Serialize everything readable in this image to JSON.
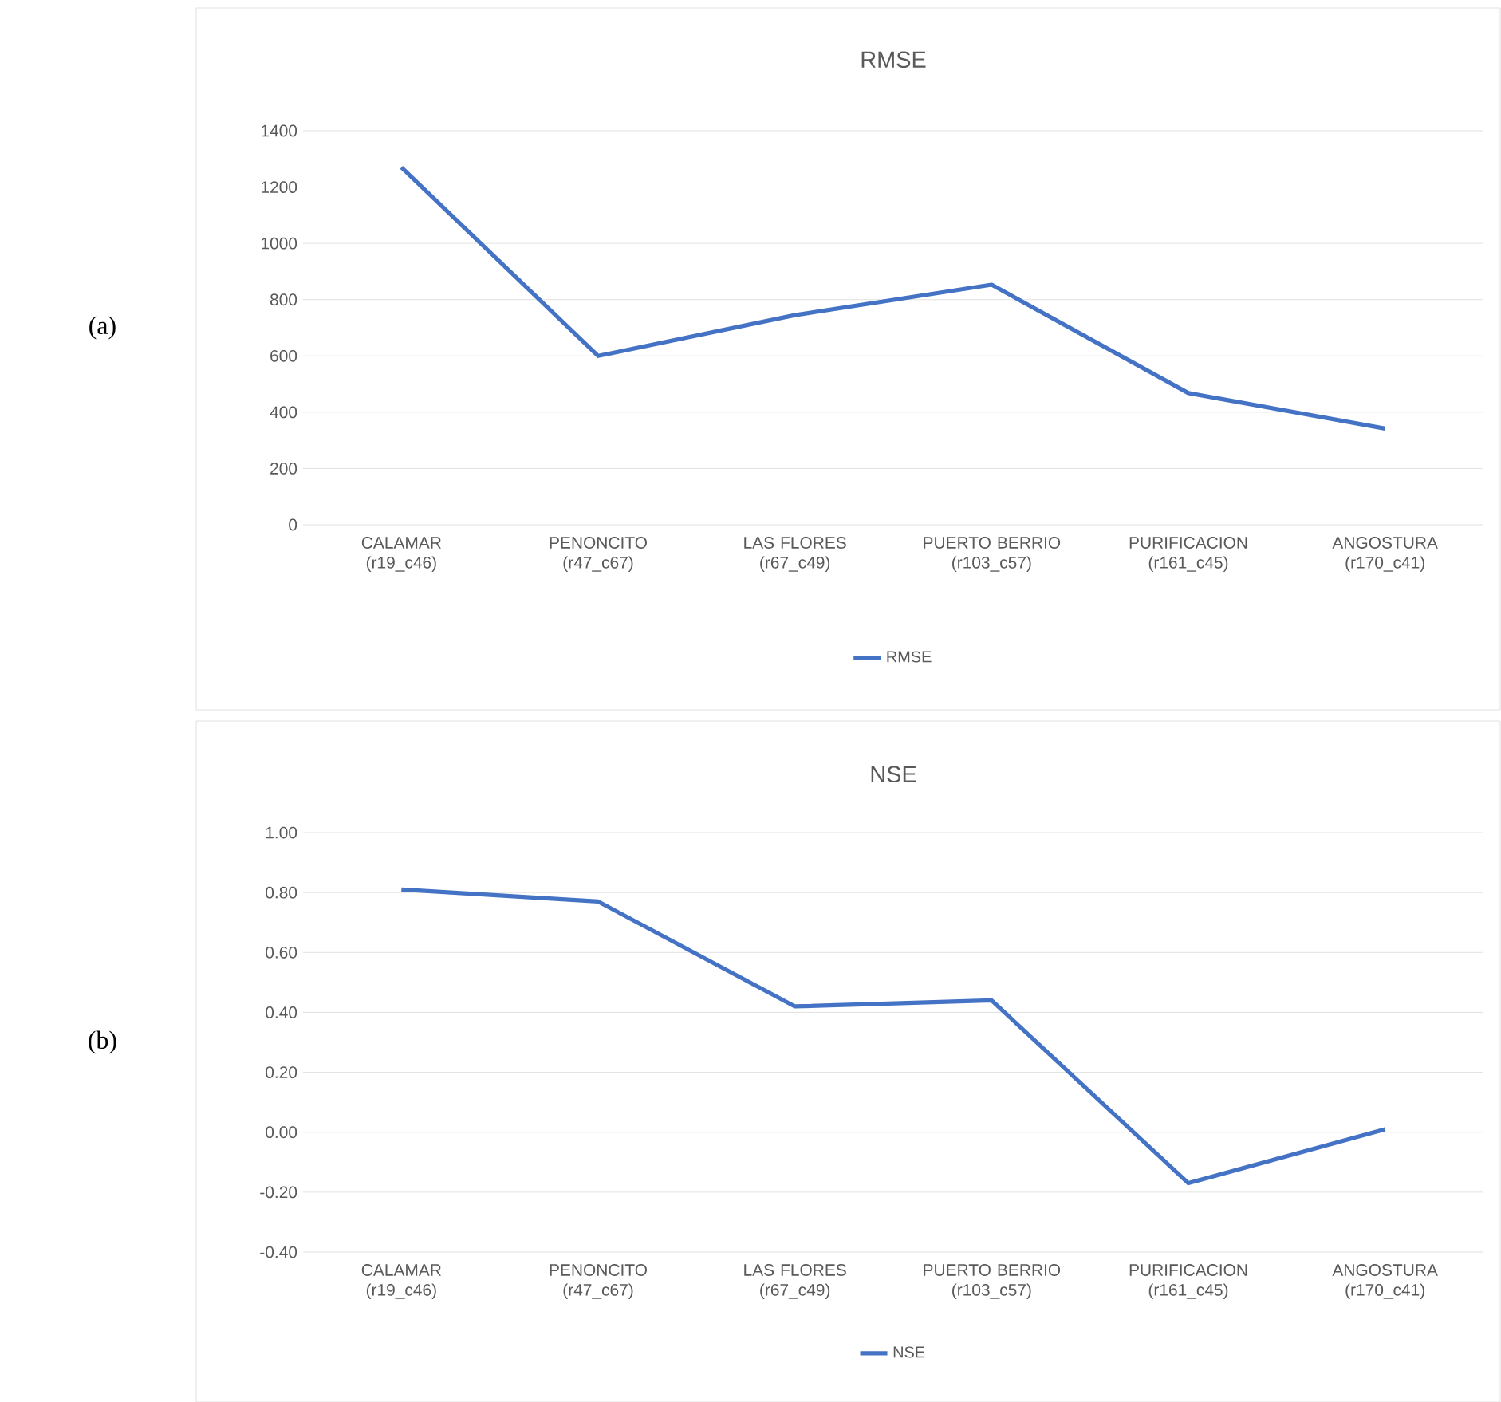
{
  "chart_data": [
    {
      "type": "line",
      "title": "RMSE",
      "categories": [
        "CALAMAR (r19_c46)",
        "PENONCITO (r47_c67)",
        "LAS FLORES (r67_c49)",
        "PUERTO BERRIO (r103_c57)",
        "PURIFICACION (r161_c45)",
        "ANGOSTURA (r170_c41)"
      ],
      "series": [
        {
          "name": "RMSE",
          "color": "#4472c4",
          "values": [
            1270,
            600,
            745,
            853,
            468,
            342
          ]
        }
      ],
      "ylim": [
        0,
        1400
      ],
      "yticks": [
        0,
        200,
        400,
        600,
        800,
        1000,
        1200,
        1400
      ],
      "grid": "y",
      "legend": "bottom",
      "marker": "none",
      "line_style": "solid",
      "annotations": [
        "(a)"
      ]
    },
    {
      "type": "line",
      "title": "NSE",
      "categories": [
        "CALAMAR (r19_c46)",
        "PENONCITO (r47_c67)",
        "LAS FLORES (r67_c49)",
        "PUERTO BERRIO (r103_c57)",
        "PURIFICACION (r161_c45)",
        "ANGOSTURA (r170_c41)"
      ],
      "series": [
        {
          "name": "NSE",
          "color": "#4472c4",
          "values": [
            0.81,
            0.77,
            0.42,
            0.44,
            -0.17,
            0.01
          ]
        }
      ],
      "ylim": [
        -0.4,
        1.0
      ],
      "yticks": [
        {
          "value": -0.4,
          "label": "-0.40"
        },
        {
          "value": -0.2,
          "label": "-0.20"
        },
        {
          "value": 0,
          "label": "0.00"
        },
        {
          "value": 0.2,
          "label": "0.20"
        },
        {
          "value": 0.4,
          "label": "0.40"
        },
        {
          "value": 0.6,
          "label": "0.60"
        },
        {
          "value": 0.8,
          "label": "0.80"
        },
        {
          "value": 1.0,
          "label": "1.00"
        }
      ],
      "grid": "y",
      "legend": "bottom",
      "marker": "none",
      "line_style": "solid",
      "annotations": [
        "(b)"
      ]
    }
  ]
}
